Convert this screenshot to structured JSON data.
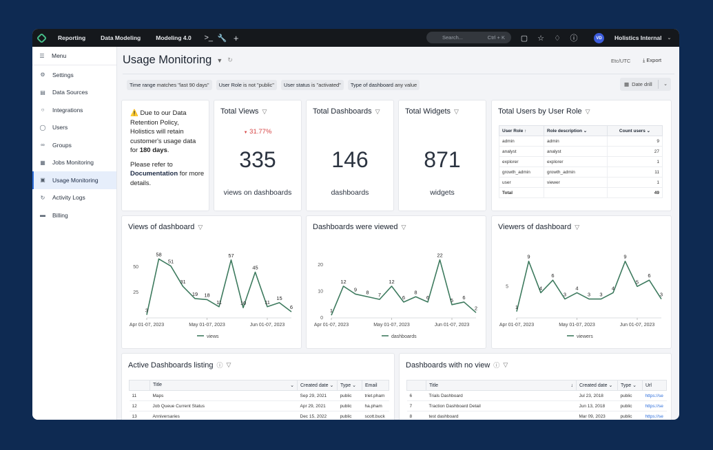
{
  "topbar": {
    "nav": [
      "Reporting",
      "Data Modeling",
      "Modeling 4.0"
    ],
    "search_placeholder": "Search...",
    "search_shortcut": "Ctrl + K",
    "avatar_initials": "VD",
    "workspace": "Holistics Internal"
  },
  "sidebar": {
    "menu_label": "Menu",
    "items": [
      {
        "label": "Settings",
        "icon": "gear-icon"
      },
      {
        "label": "Data Sources",
        "icon": "database-icon"
      },
      {
        "label": "Integrations",
        "icon": "integrations-icon"
      },
      {
        "label": "Users",
        "icon": "user-icon"
      },
      {
        "label": "Groups",
        "icon": "groups-icon"
      },
      {
        "label": "Jobs Monitoring",
        "icon": "calendar-icon"
      },
      {
        "label": "Usage Monitoring",
        "icon": "monitor-icon"
      },
      {
        "label": "Activity Logs",
        "icon": "logs-icon"
      },
      {
        "label": "Billing",
        "icon": "card-icon"
      }
    ],
    "active_index": 6
  },
  "page": {
    "title": "Usage Monitoring",
    "timezone": "Etc/UTC",
    "export_label": "Export",
    "date_drill_label": "Date drill"
  },
  "filters": [
    {
      "field": "Time range",
      "op": "matches",
      "value": "\"last 90 days\""
    },
    {
      "field": "User Role",
      "op": "is not",
      "value": "\"public\""
    },
    {
      "field": "User status",
      "op": "is",
      "value": "\"activated\""
    },
    {
      "field": "Type of dashboard",
      "op": "any",
      "value": "value"
    }
  ],
  "notice": {
    "line1": "Due to our Data Retention Policy, Holistics will retain customer's usage data for",
    "bold": "180 days",
    "end": ".",
    "line2": "Please refer to",
    "link": "Documentation",
    "line2_end": "for more details."
  },
  "kpis": [
    {
      "title": "Total Views",
      "delta": "31.77%",
      "value": "335",
      "label": "views on dashboards"
    },
    {
      "title": "Total Dashboards",
      "delta": "",
      "value": "146",
      "label": "dashboards"
    },
    {
      "title": "Total Widgets",
      "delta": "",
      "value": "871",
      "label": "widgets"
    }
  ],
  "users_by_role": {
    "title": "Total Users by User Role",
    "headers": [
      "User Role",
      "Role description",
      "Count users"
    ],
    "rows": [
      [
        "admin",
        "admin",
        "9"
      ],
      [
        "analyst",
        "analyst",
        "27"
      ],
      [
        "explorer",
        "explorer",
        "1"
      ],
      [
        "growth_admin",
        "growth_admin",
        "11"
      ],
      [
        "user",
        "viewer",
        "1"
      ]
    ],
    "total_label": "Total",
    "total_value": "49"
  },
  "chart_data": [
    {
      "type": "line",
      "title": "Views of dashboard",
      "x": [
        "Apr 01-07, 2023",
        "Apr 08-14, 2023",
        "Apr 15-21, 2023",
        "Apr 22-28, 2023",
        "Apr 29-May 05, 2023",
        "May 01-07, 2023",
        "May 08-14, 2023",
        "May 15-21, 2023",
        "May 22-28, 2023",
        "May 29-Jun 04, 2023",
        "Jun 01-07, 2023",
        "Jun 08-14, 2023",
        "Jun 15-21, 2023"
      ],
      "tick_labels": [
        "Apr 01-07, 2023",
        "May 01-07, 2023",
        "Jun 01-07, 2023"
      ],
      "yticks": [
        50,
        25
      ],
      "series": [
        {
          "name": "views",
          "values": [
            3,
            58,
            51,
            31,
            19,
            18,
            11,
            57,
            10,
            45,
            11,
            15,
            6
          ]
        }
      ],
      "ylim": [
        0,
        65
      ],
      "color": "#3d7a5e"
    },
    {
      "type": "line",
      "title": "Dashboards were viewed",
      "x": [
        "Apr 01-07, 2023",
        "Apr 08-14, 2023",
        "Apr 15-21, 2023",
        "Apr 22-28, 2023",
        "Apr 29-May 05, 2023",
        "May 01-07, 2023",
        "May 08-14, 2023",
        "May 15-21, 2023",
        "May 22-28, 2023",
        "May 29-Jun 04, 2023",
        "Jun 01-07, 2023",
        "Jun 08-14, 2023",
        "Jun 15-21, 2023"
      ],
      "tick_labels": [
        "Apr 01-07, 2023",
        "May 01-07, 2023",
        "Jun 01-07, 2023"
      ],
      "yticks": [
        20,
        10,
        0
      ],
      "series": [
        {
          "name": "dashboards",
          "values": [
            1,
            12,
            9,
            8,
            7,
            12,
            6,
            8,
            6,
            22,
            5,
            6,
            2
          ]
        }
      ],
      "ylim": [
        0,
        25
      ],
      "color": "#3d7a5e"
    },
    {
      "type": "line",
      "title": "Viewers of dashboard",
      "x": [
        "Apr 01-07, 2023",
        "Apr 08-14, 2023",
        "Apr 15-21, 2023",
        "Apr 22-28, 2023",
        "Apr 29-May 05, 2023",
        "May 01-07, 2023",
        "May 08-14, 2023",
        "May 15-21, 2023",
        "May 22-28, 2023",
        "May 29-Jun 04, 2023",
        "Jun 01-07, 2023",
        "Jun 08-14, 2023",
        "Jun 15-21, 2023"
      ],
      "tick_labels": [
        "Apr 01-07, 2023",
        "May 01-07, 2023",
        "Jun 01-07, 2023"
      ],
      "yticks": [
        5
      ],
      "series": [
        {
          "name": "viewers",
          "values": [
            1,
            9,
            4,
            6,
            3,
            4,
            3,
            3,
            4,
            9,
            5,
            6,
            3
          ]
        }
      ],
      "ylim": [
        0,
        10.5
      ],
      "color": "#3d7a5e"
    }
  ],
  "active_listing": {
    "title": "Active Dashboards listing",
    "headers": [
      "",
      "Title",
      "Created date",
      "Type",
      "Email"
    ],
    "rows": [
      [
        "11",
        "Maps",
        "Sep 29, 2021",
        "public",
        "triet.pham"
      ],
      [
        "12",
        "Job Queue Current Status",
        "Apr 29, 2021",
        "public",
        "ha.pham"
      ],
      [
        "13",
        "Anniversaries",
        "Dec 15, 2022",
        "public",
        "scott.buck"
      ]
    ]
  },
  "no_view": {
    "title": "Dashboards with no view",
    "headers": [
      "",
      "Title",
      "Created date",
      "Type",
      "Url"
    ],
    "rows": [
      [
        "6",
        "Trials Dashboard",
        "Jul 23, 2018",
        "public",
        "https://se"
      ],
      [
        "7",
        "Traction Dashboard Detail",
        "Jun 13, 2018",
        "public",
        "https://se"
      ],
      [
        "8",
        "test dashboard",
        "Mar 09, 2023",
        "public",
        "https://se"
      ]
    ]
  }
}
